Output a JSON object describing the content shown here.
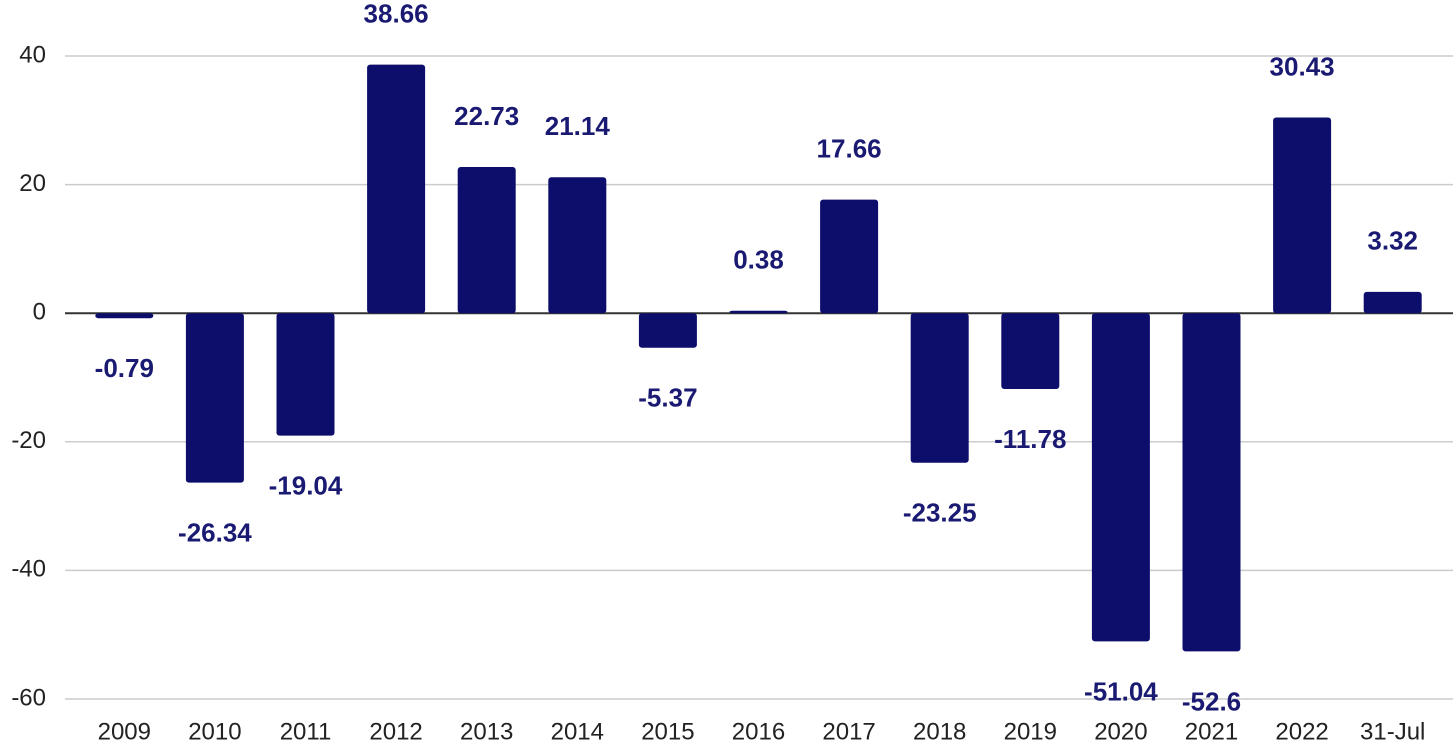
{
  "chart_data": {
    "type": "bar",
    "categories": [
      "2009",
      "2010",
      "2011",
      "2012",
      "2013",
      "2014",
      "2015",
      "2016",
      "2017",
      "2018",
      "2019",
      "2020",
      "2021",
      "2022",
      "31-Jul"
    ],
    "values": [
      -0.79,
      -26.34,
      -19.04,
      38.66,
      22.73,
      21.14,
      -5.37,
      0.38,
      17.66,
      -23.25,
      -11.78,
      -51.04,
      -52.6,
      30.43,
      3.32
    ],
    "color": "#0d0d6b",
    "ylim": [
      -60,
      40
    ],
    "yticks": [
      -60,
      -40,
      -20,
      0,
      20,
      40
    ],
    "grid": true
  }
}
